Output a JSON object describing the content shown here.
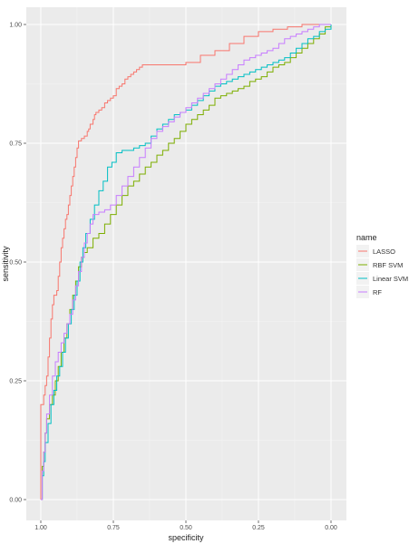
{
  "chart_data": {
    "type": "line",
    "xlabel": "specificity",
    "ylabel": "sensitivity",
    "xlim": [
      1.0,
      0.0
    ],
    "ylim": [
      0.0,
      1.0
    ],
    "x_reversed": true,
    "x_ticks": [
      "1.00",
      "0.75",
      "0.50",
      "0.25",
      "0.00"
    ],
    "y_ticks": [
      "0.00",
      "0.25",
      "0.50",
      "0.75",
      "1.00"
    ],
    "grid": true,
    "legend": {
      "title": "name",
      "position": "right"
    },
    "series": [
      {
        "name": "LASSO",
        "color": "#F8766D",
        "points": [
          [
            1.0,
            0.0
          ],
          [
            1.0,
            0.2
          ],
          [
            0.99,
            0.22
          ],
          [
            0.985,
            0.24
          ],
          [
            0.98,
            0.26
          ],
          [
            0.975,
            0.3
          ],
          [
            0.97,
            0.34
          ],
          [
            0.965,
            0.38
          ],
          [
            0.96,
            0.41
          ],
          [
            0.955,
            0.43
          ],
          [
            0.945,
            0.44
          ],
          [
            0.94,
            0.47
          ],
          [
            0.935,
            0.5
          ],
          [
            0.93,
            0.53
          ],
          [
            0.925,
            0.55
          ],
          [
            0.92,
            0.57
          ],
          [
            0.915,
            0.59
          ],
          [
            0.91,
            0.6
          ],
          [
            0.905,
            0.62
          ],
          [
            0.9,
            0.64
          ],
          [
            0.895,
            0.66
          ],
          [
            0.89,
            0.68
          ],
          [
            0.885,
            0.7
          ],
          [
            0.88,
            0.72
          ],
          [
            0.875,
            0.74
          ],
          [
            0.87,
            0.755
          ],
          [
            0.86,
            0.76
          ],
          [
            0.85,
            0.765
          ],
          [
            0.84,
            0.775
          ],
          [
            0.835,
            0.78
          ],
          [
            0.83,
            0.79
          ],
          [
            0.82,
            0.8
          ],
          [
            0.815,
            0.81
          ],
          [
            0.81,
            0.815
          ],
          [
            0.8,
            0.82
          ],
          [
            0.79,
            0.825
          ],
          [
            0.78,
            0.835
          ],
          [
            0.77,
            0.84
          ],
          [
            0.76,
            0.845
          ],
          [
            0.75,
            0.85
          ],
          [
            0.74,
            0.865
          ],
          [
            0.73,
            0.87
          ],
          [
            0.72,
            0.875
          ],
          [
            0.71,
            0.885
          ],
          [
            0.7,
            0.89
          ],
          [
            0.69,
            0.895
          ],
          [
            0.68,
            0.9
          ],
          [
            0.67,
            0.905
          ],
          [
            0.66,
            0.91
          ],
          [
            0.65,
            0.915
          ],
          [
            0.6,
            0.915
          ],
          [
            0.55,
            0.915
          ],
          [
            0.5,
            0.92
          ],
          [
            0.45,
            0.935
          ],
          [
            0.4,
            0.945
          ],
          [
            0.35,
            0.96
          ],
          [
            0.3,
            0.975
          ],
          [
            0.25,
            0.985
          ],
          [
            0.2,
            0.99
          ],
          [
            0.15,
            0.995
          ],
          [
            0.1,
            1.0
          ],
          [
            0.05,
            1.0
          ],
          [
            0.0,
            1.0
          ]
        ]
      },
      {
        "name": "RBF SVM",
        "color": "#7CAE00",
        "points": [
          [
            1.0,
            0.0
          ],
          [
            0.995,
            0.07
          ],
          [
            0.99,
            0.1
          ],
          [
            0.985,
            0.14
          ],
          [
            0.98,
            0.17
          ],
          [
            0.97,
            0.2
          ],
          [
            0.96,
            0.22
          ],
          [
            0.95,
            0.25
          ],
          [
            0.94,
            0.28
          ],
          [
            0.93,
            0.31
          ],
          [
            0.92,
            0.34
          ],
          [
            0.91,
            0.37
          ],
          [
            0.9,
            0.4
          ],
          [
            0.89,
            0.43
          ],
          [
            0.88,
            0.46
          ],
          [
            0.87,
            0.49
          ],
          [
            0.86,
            0.51
          ],
          [
            0.85,
            0.52
          ],
          [
            0.84,
            0.53
          ],
          [
            0.82,
            0.55
          ],
          [
            0.8,
            0.56
          ],
          [
            0.78,
            0.58
          ],
          [
            0.76,
            0.6
          ],
          [
            0.74,
            0.62
          ],
          [
            0.72,
            0.64
          ],
          [
            0.7,
            0.66
          ],
          [
            0.68,
            0.67
          ],
          [
            0.66,
            0.685
          ],
          [
            0.64,
            0.7
          ],
          [
            0.62,
            0.71
          ],
          [
            0.6,
            0.725
          ],
          [
            0.58,
            0.735
          ],
          [
            0.56,
            0.75
          ],
          [
            0.54,
            0.76
          ],
          [
            0.52,
            0.775
          ],
          [
            0.5,
            0.79
          ],
          [
            0.48,
            0.8
          ],
          [
            0.46,
            0.81
          ],
          [
            0.44,
            0.82
          ],
          [
            0.42,
            0.83
          ],
          [
            0.4,
            0.845
          ],
          [
            0.38,
            0.85
          ],
          [
            0.36,
            0.855
          ],
          [
            0.34,
            0.86
          ],
          [
            0.32,
            0.865
          ],
          [
            0.3,
            0.87
          ],
          [
            0.28,
            0.88
          ],
          [
            0.26,
            0.885
          ],
          [
            0.24,
            0.89
          ],
          [
            0.22,
            0.9
          ],
          [
            0.2,
            0.91
          ],
          [
            0.18,
            0.915
          ],
          [
            0.16,
            0.92
          ],
          [
            0.14,
            0.93
          ],
          [
            0.12,
            0.94
          ],
          [
            0.1,
            0.95
          ],
          [
            0.08,
            0.96
          ],
          [
            0.06,
            0.97
          ],
          [
            0.04,
            0.98
          ],
          [
            0.02,
            0.995
          ],
          [
            0.0,
            1.0
          ]
        ]
      },
      {
        "name": "Linear SVM",
        "color": "#00BFC4",
        "points": [
          [
            1.0,
            0.0
          ],
          [
            0.995,
            0.05
          ],
          [
            0.99,
            0.08
          ],
          [
            0.985,
            0.12
          ],
          [
            0.975,
            0.16
          ],
          [
            0.965,
            0.2
          ],
          [
            0.955,
            0.23
          ],
          [
            0.945,
            0.26
          ],
          [
            0.935,
            0.28
          ],
          [
            0.925,
            0.31
          ],
          [
            0.915,
            0.34
          ],
          [
            0.905,
            0.37
          ],
          [
            0.895,
            0.4
          ],
          [
            0.885,
            0.43
          ],
          [
            0.875,
            0.46
          ],
          [
            0.865,
            0.5
          ],
          [
            0.855,
            0.53
          ],
          [
            0.845,
            0.56
          ],
          [
            0.83,
            0.59
          ],
          [
            0.815,
            0.62
          ],
          [
            0.8,
            0.65
          ],
          [
            0.785,
            0.67
          ],
          [
            0.77,
            0.7
          ],
          [
            0.755,
            0.71
          ],
          [
            0.74,
            0.73
          ],
          [
            0.72,
            0.735
          ],
          [
            0.7,
            0.735
          ],
          [
            0.68,
            0.74
          ],
          [
            0.66,
            0.745
          ],
          [
            0.64,
            0.75
          ],
          [
            0.62,
            0.765
          ],
          [
            0.6,
            0.78
          ],
          [
            0.58,
            0.79
          ],
          [
            0.56,
            0.8
          ],
          [
            0.54,
            0.81
          ],
          [
            0.52,
            0.815
          ],
          [
            0.5,
            0.82
          ],
          [
            0.48,
            0.83
          ],
          [
            0.46,
            0.84
          ],
          [
            0.44,
            0.85
          ],
          [
            0.42,
            0.86
          ],
          [
            0.4,
            0.87
          ],
          [
            0.38,
            0.875
          ],
          [
            0.36,
            0.88
          ],
          [
            0.34,
            0.885
          ],
          [
            0.32,
            0.89
          ],
          [
            0.3,
            0.895
          ],
          [
            0.28,
            0.9
          ],
          [
            0.26,
            0.905
          ],
          [
            0.24,
            0.91
          ],
          [
            0.22,
            0.915
          ],
          [
            0.2,
            0.92
          ],
          [
            0.18,
            0.925
          ],
          [
            0.16,
            0.93
          ],
          [
            0.14,
            0.94
          ],
          [
            0.12,
            0.95
          ],
          [
            0.1,
            0.96
          ],
          [
            0.08,
            0.97
          ],
          [
            0.06,
            0.975
          ],
          [
            0.04,
            0.985
          ],
          [
            0.02,
            0.99
          ],
          [
            0.0,
            1.0
          ]
        ]
      },
      {
        "name": "RF",
        "color": "#C77CFF",
        "points": [
          [
            1.0,
            0.0
          ],
          [
            0.995,
            0.06
          ],
          [
            0.99,
            0.1
          ],
          [
            0.985,
            0.14
          ],
          [
            0.98,
            0.18
          ],
          [
            0.97,
            0.22
          ],
          [
            0.96,
            0.26
          ],
          [
            0.95,
            0.29
          ],
          [
            0.94,
            0.31
          ],
          [
            0.93,
            0.33
          ],
          [
            0.92,
            0.35
          ],
          [
            0.91,
            0.37
          ],
          [
            0.9,
            0.39
          ],
          [
            0.89,
            0.42
          ],
          [
            0.88,
            0.45
          ],
          [
            0.87,
            0.48
          ],
          [
            0.86,
            0.51
          ],
          [
            0.85,
            0.54
          ],
          [
            0.84,
            0.56
          ],
          [
            0.83,
            0.58
          ],
          [
            0.82,
            0.6
          ],
          [
            0.8,
            0.605
          ],
          [
            0.78,
            0.61
          ],
          [
            0.76,
            0.62
          ],
          [
            0.74,
            0.64
          ],
          [
            0.72,
            0.66
          ],
          [
            0.7,
            0.68
          ],
          [
            0.68,
            0.7
          ],
          [
            0.66,
            0.72
          ],
          [
            0.64,
            0.74
          ],
          [
            0.62,
            0.76
          ],
          [
            0.6,
            0.775
          ],
          [
            0.58,
            0.785
          ],
          [
            0.56,
            0.795
          ],
          [
            0.54,
            0.805
          ],
          [
            0.52,
            0.815
          ],
          [
            0.5,
            0.825
          ],
          [
            0.48,
            0.835
          ],
          [
            0.46,
            0.845
          ],
          [
            0.44,
            0.855
          ],
          [
            0.42,
            0.865
          ],
          [
            0.4,
            0.875
          ],
          [
            0.38,
            0.885
          ],
          [
            0.36,
            0.895
          ],
          [
            0.34,
            0.905
          ],
          [
            0.32,
            0.915
          ],
          [
            0.3,
            0.925
          ],
          [
            0.28,
            0.93
          ],
          [
            0.26,
            0.935
          ],
          [
            0.24,
            0.94
          ],
          [
            0.22,
            0.945
          ],
          [
            0.2,
            0.95
          ],
          [
            0.18,
            0.96
          ],
          [
            0.16,
            0.97
          ],
          [
            0.14,
            0.975
          ],
          [
            0.12,
            0.98
          ],
          [
            0.1,
            0.985
          ],
          [
            0.08,
            0.99
          ],
          [
            0.06,
            0.995
          ],
          [
            0.04,
            1.0
          ],
          [
            0.0,
            1.0
          ]
        ]
      }
    ]
  }
}
